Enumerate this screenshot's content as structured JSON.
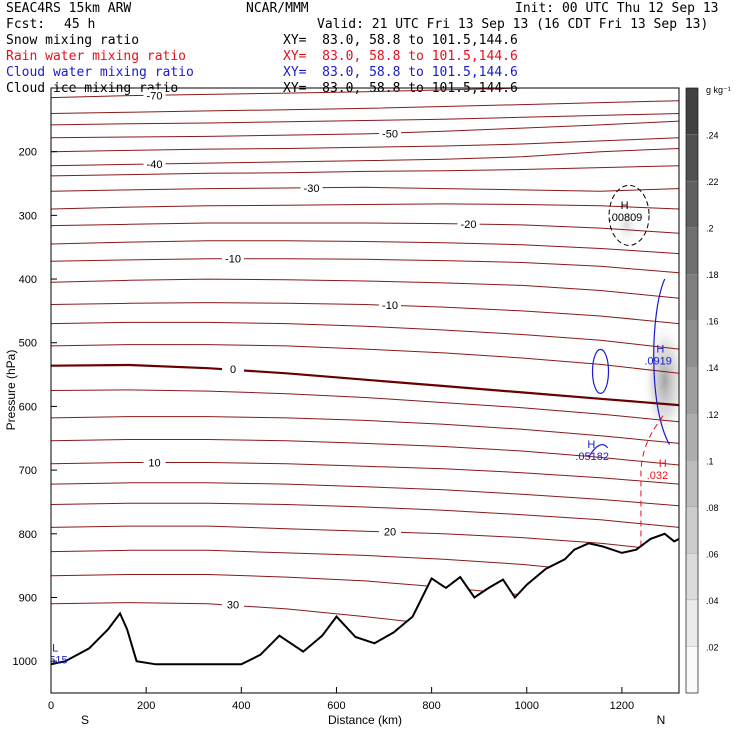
{
  "header": {
    "model": "SEAC4RS 15km ARW",
    "forecast_label": "Fcst:",
    "forecast_value": "45 h",
    "center": "NCAR/MMM",
    "init": "Init: 00 UTC Thu 12 Sep 13",
    "valid": "Valid: 21 UTC Fri 13 Sep 13 (16 CDT Fri 13 Sep 13)"
  },
  "fields": [
    {
      "name": "Snow mixing ratio",
      "xy": "XY=  83.0, 58.8 to 101.5,144.6",
      "color": "#000000"
    },
    {
      "name": "Rain water mixing ratio",
      "xy": "XY=  83.0, 58.8 to 101.5,144.6",
      "color": "#e8101a"
    },
    {
      "name": "Cloud water mixing ratio",
      "xy": "XY=  83.0, 58.8 to 101.5,144.6",
      "color": "#1a1ad0"
    },
    {
      "name": "Cloud ice mixing ratio",
      "xy": "XY=  83.0, 58.8 to 101.5,144.6",
      "color": "#000000"
    }
  ],
  "chart_data": {
    "type": "contour",
    "xlabel": "Distance (km)",
    "ylabel": "Pressure (hPa)",
    "xlim": [
      0,
      1320
    ],
    "ylim": [
      1050,
      100
    ],
    "x_ticks": [
      0,
      200,
      400,
      600,
      800,
      1000,
      1200
    ],
    "y_ticks": [
      200,
      300,
      400,
      500,
      600,
      700,
      800,
      900,
      1000
    ],
    "x_end_labels": [
      "S",
      "N"
    ],
    "colorbar": {
      "unit": "g kg⁻¹",
      "ticks": [
        ".02",
        ".04",
        ".06",
        ".08",
        ".1",
        ".12",
        ".14",
        ".16",
        ".18",
        ".2",
        ".22",
        ".24"
      ]
    },
    "temperature_contours": {
      "color": "#8a1a1a",
      "zero_color": "#6a0000",
      "levels": [
        {
          "label": "-70",
          "p": [
            115,
            112,
            110,
            108,
            106,
            103,
            100,
            97,
            95
          ]
        },
        {
          "label": "",
          "p": [
            140,
            138,
            136,
            134,
            132,
            129,
            126,
            123,
            120
          ]
        },
        {
          "label": "",
          "p": [
            158,
            156,
            155,
            153,
            151,
            149,
            146,
            143,
            140
          ]
        },
        {
          "label": "-50",
          "p": [
            178,
            177,
            176,
            174,
            172,
            168,
            163,
            158,
            152
          ]
        },
        {
          "label": "",
          "p": [
            200,
            198,
            196,
            195,
            193,
            191,
            188,
            183,
            178
          ]
        },
        {
          "label": "-40",
          "p": [
            222,
            220,
            218,
            216,
            214,
            212,
            208,
            200,
            195
          ]
        },
        {
          "label": "",
          "p": [
            238,
            236,
            234,
            233,
            231,
            230,
            228,
            225,
            222
          ]
        },
        {
          "label": "-30",
          "p": [
            262,
            260,
            258,
            257,
            256,
            258,
            260,
            262,
            258
          ]
        },
        {
          "label": "",
          "p": [
            290,
            287,
            285,
            284,
            283,
            282,
            283,
            285,
            290
          ]
        },
        {
          "label": "-20",
          "p": [
            316,
            314,
            312,
            312,
            312,
            313,
            315,
            320,
            328
          ]
        },
        {
          "label": "",
          "p": [
            345,
            342,
            340,
            340,
            341,
            343,
            346,
            352,
            360
          ]
        },
        {
          "label": "-10",
          "p": [
            372,
            370,
            368,
            368,
            369,
            371,
            374,
            380,
            390
          ]
        },
        {
          "label": "",
          "p": [
            405,
            402,
            400,
            401,
            403,
            406,
            410,
            418,
            430
          ]
        },
        {
          "label": "-10",
          "p": [
            440,
            438,
            437,
            438,
            440,
            444,
            450,
            458,
            470
          ]
        },
        {
          "label": "",
          "p": [
            470,
            468,
            468,
            470,
            474,
            480,
            487,
            496,
            510
          ]
        },
        {
          "label": "",
          "p": [
            505,
            503,
            503,
            505,
            510,
            516,
            524,
            534,
            548
          ]
        },
        {
          "label": "0",
          "p": [
            536,
            535,
            540,
            548,
            558,
            568,
            578,
            588,
            598
          ],
          "zero": true
        },
        {
          "label": "",
          "p": [
            575,
            574,
            576,
            580,
            586,
            594,
            602,
            612,
            624
          ]
        },
        {
          "label": "",
          "p": [
            618,
            616,
            616,
            618,
            622,
            628,
            636,
            646,
            658
          ]
        },
        {
          "label": "",
          "p": [
            654,
            652,
            652,
            654,
            658,
            663,
            670,
            680,
            692
          ]
        },
        {
          "label": "10",
          "p": [
            690,
            688,
            688,
            690,
            694,
            698,
            704,
            712,
            722
          ]
        },
        {
          "label": "",
          "p": [
            722,
            720,
            720,
            722,
            726,
            731,
            738,
            746,
            756
          ]
        },
        {
          "label": "",
          "p": [
            754,
            752,
            752,
            754,
            758,
            763,
            770,
            778,
            790
          ]
        },
        {
          "label": "20",
          "p": [
            790,
            788,
            788,
            792,
            796,
            800,
            806,
            815,
            828
          ]
        },
        {
          "label": "",
          "p": [
            828,
            826,
            826,
            830,
            834,
            840,
            848,
            860,
            875
          ]
        },
        {
          "label": "",
          "p": [
            866,
            864,
            864,
            868,
            874,
            884,
            896,
            908,
            920
          ]
        },
        {
          "label": "30",
          "p": [
            910,
            908,
            910,
            918,
            930,
            944,
            960,
            976,
            990
          ]
        }
      ]
    },
    "terrain": [
      [
        0,
        1005
      ],
      [
        30,
        1000
      ],
      [
        80,
        980
      ],
      [
        120,
        950
      ],
      [
        145,
        925
      ],
      [
        160,
        950
      ],
      [
        180,
        1000
      ],
      [
        220,
        1005
      ],
      [
        400,
        1005
      ],
      [
        440,
        990
      ],
      [
        480,
        960
      ],
      [
        500,
        970
      ],
      [
        530,
        985
      ],
      [
        570,
        960
      ],
      [
        600,
        930
      ],
      [
        640,
        962
      ],
      [
        680,
        972
      ],
      [
        720,
        955
      ],
      [
        760,
        930
      ],
      [
        780,
        900
      ],
      [
        800,
        870
      ],
      [
        830,
        885
      ],
      [
        860,
        868
      ],
      [
        890,
        900
      ],
      [
        920,
        885
      ],
      [
        950,
        872
      ],
      [
        975,
        900
      ],
      [
        1000,
        880
      ],
      [
        1040,
        855
      ],
      [
        1080,
        840
      ],
      [
        1100,
        825
      ],
      [
        1130,
        815
      ],
      [
        1160,
        820
      ],
      [
        1200,
        830
      ],
      [
        1230,
        825
      ],
      [
        1260,
        808
      ],
      [
        1290,
        800
      ],
      [
        1310,
        812
      ],
      [
        1320,
        808
      ]
    ],
    "annotations": [
      {
        "text": "H",
        "sub": ".00809",
        "color": "#000000",
        "x": 1210,
        "p": 290
      },
      {
        "text": "H",
        "sub": ".0919",
        "color": "#1a1ad0",
        "x": 1285,
        "p": 515
      },
      {
        "text": "H",
        "sub": ".05182",
        "color": "#1a1ad0",
        "x": 1140,
        "p": 665
      },
      {
        "text": "H",
        "sub": ".032",
        "color": "#e8101a",
        "x": 1290,
        "p": 695
      },
      {
        "text": "L",
        "sub": ".2515",
        "color": "#1a1ad0",
        "x": 15,
        "p": 985
      }
    ]
  }
}
